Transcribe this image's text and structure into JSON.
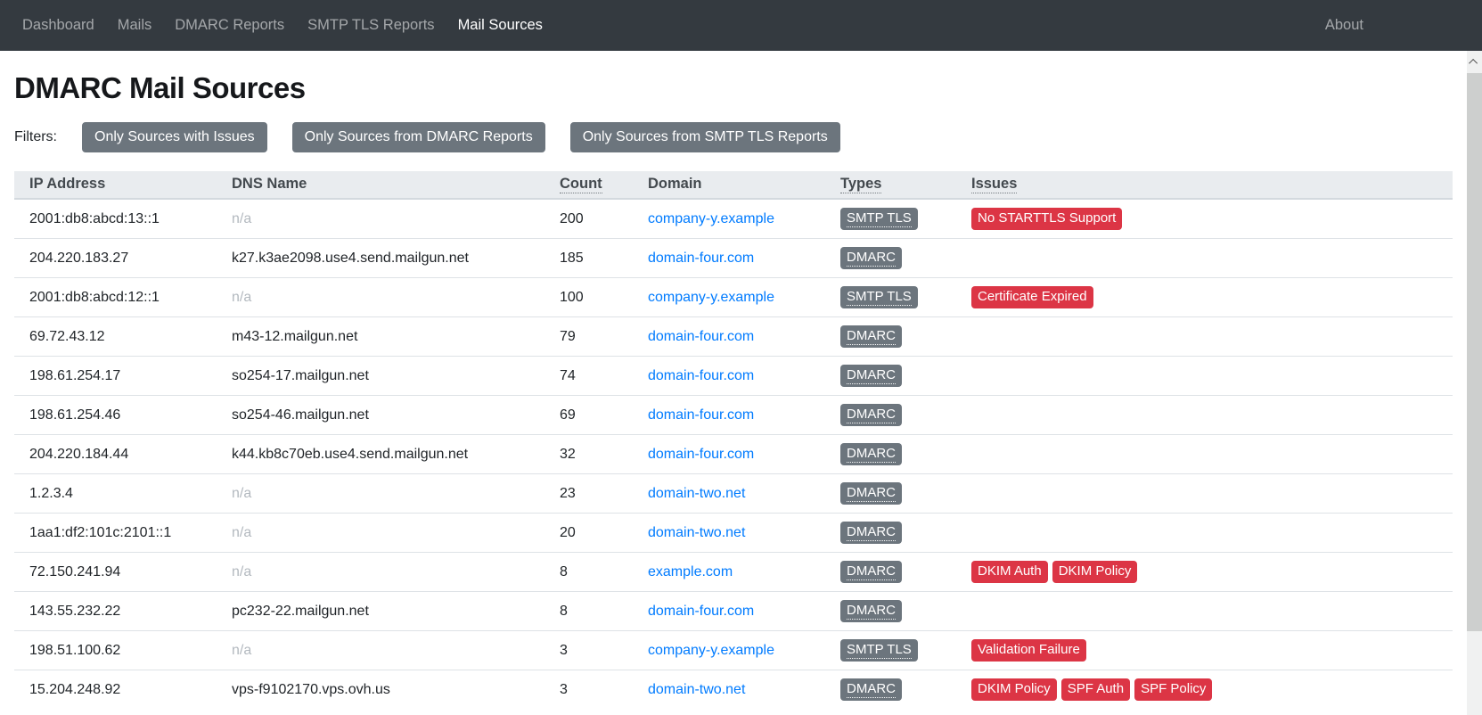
{
  "navbar": {
    "items": [
      {
        "label": "Dashboard",
        "active": false
      },
      {
        "label": "Mails",
        "active": false
      },
      {
        "label": "DMARC Reports",
        "active": false
      },
      {
        "label": "SMTP TLS Reports",
        "active": false
      },
      {
        "label": "Mail Sources",
        "active": true
      }
    ],
    "about_label": "About"
  },
  "page": {
    "title": "DMARC Mail Sources"
  },
  "filters": {
    "label": "Filters:",
    "buttons": [
      "Only Sources with Issues",
      "Only Sources from DMARC Reports",
      "Only Sources from SMTP TLS Reports"
    ]
  },
  "table": {
    "na_text": "n/a",
    "columns": [
      {
        "label": "IP Address",
        "underlined": false
      },
      {
        "label": "DNS Name",
        "underlined": false
      },
      {
        "label": "Count",
        "underlined": true
      },
      {
        "label": "Domain",
        "underlined": false
      },
      {
        "label": "Types",
        "underlined": true
      },
      {
        "label": "Issues",
        "underlined": true
      }
    ],
    "rows": [
      {
        "ip": "2001:db8:abcd:13::1",
        "dns": null,
        "count": 200,
        "domain": "company-y.example",
        "types": [
          "SMTP TLS"
        ],
        "issues": [
          "No STARTTLS Support"
        ]
      },
      {
        "ip": "204.220.183.27",
        "dns": "k27.k3ae2098.use4.send.mailgun.net",
        "count": 185,
        "domain": "domain-four.com",
        "types": [
          "DMARC"
        ],
        "issues": []
      },
      {
        "ip": "2001:db8:abcd:12::1",
        "dns": null,
        "count": 100,
        "domain": "company-y.example",
        "types": [
          "SMTP TLS"
        ],
        "issues": [
          "Certificate Expired"
        ]
      },
      {
        "ip": "69.72.43.12",
        "dns": "m43-12.mailgun.net",
        "count": 79,
        "domain": "domain-four.com",
        "types": [
          "DMARC"
        ],
        "issues": []
      },
      {
        "ip": "198.61.254.17",
        "dns": "so254-17.mailgun.net",
        "count": 74,
        "domain": "domain-four.com",
        "types": [
          "DMARC"
        ],
        "issues": []
      },
      {
        "ip": "198.61.254.46",
        "dns": "so254-46.mailgun.net",
        "count": 69,
        "domain": "domain-four.com",
        "types": [
          "DMARC"
        ],
        "issues": []
      },
      {
        "ip": "204.220.184.44",
        "dns": "k44.kb8c70eb.use4.send.mailgun.net",
        "count": 32,
        "domain": "domain-four.com",
        "types": [
          "DMARC"
        ],
        "issues": []
      },
      {
        "ip": "1.2.3.4",
        "dns": null,
        "count": 23,
        "domain": "domain-two.net",
        "types": [
          "DMARC"
        ],
        "issues": []
      },
      {
        "ip": "1aa1:df2:101c:2101::1",
        "dns": null,
        "count": 20,
        "domain": "domain-two.net",
        "types": [
          "DMARC"
        ],
        "issues": []
      },
      {
        "ip": "72.150.241.94",
        "dns": null,
        "count": 8,
        "domain": "example.com",
        "types": [
          "DMARC"
        ],
        "issues": [
          "DKIM Auth",
          "DKIM Policy"
        ]
      },
      {
        "ip": "143.55.232.22",
        "dns": "pc232-22.mailgun.net",
        "count": 8,
        "domain": "domain-four.com",
        "types": [
          "DMARC"
        ],
        "issues": []
      },
      {
        "ip": "198.51.100.62",
        "dns": null,
        "count": 3,
        "domain": "company-y.example",
        "types": [
          "SMTP TLS"
        ],
        "issues": [
          "Validation Failure"
        ]
      },
      {
        "ip": "15.204.248.92",
        "dns": "vps-f9102170.vps.ovh.us",
        "count": 3,
        "domain": "domain-two.net",
        "types": [
          "DMARC"
        ],
        "issues": [
          "DKIM Policy",
          "SPF Auth",
          "SPF Policy"
        ]
      }
    ]
  },
  "colors": {
    "navbar_bg": "#343a40",
    "type_badge": "#6c757d",
    "issue_badge": "#dc3545",
    "link": "#007bff",
    "header_bg": "#e9ecef"
  }
}
